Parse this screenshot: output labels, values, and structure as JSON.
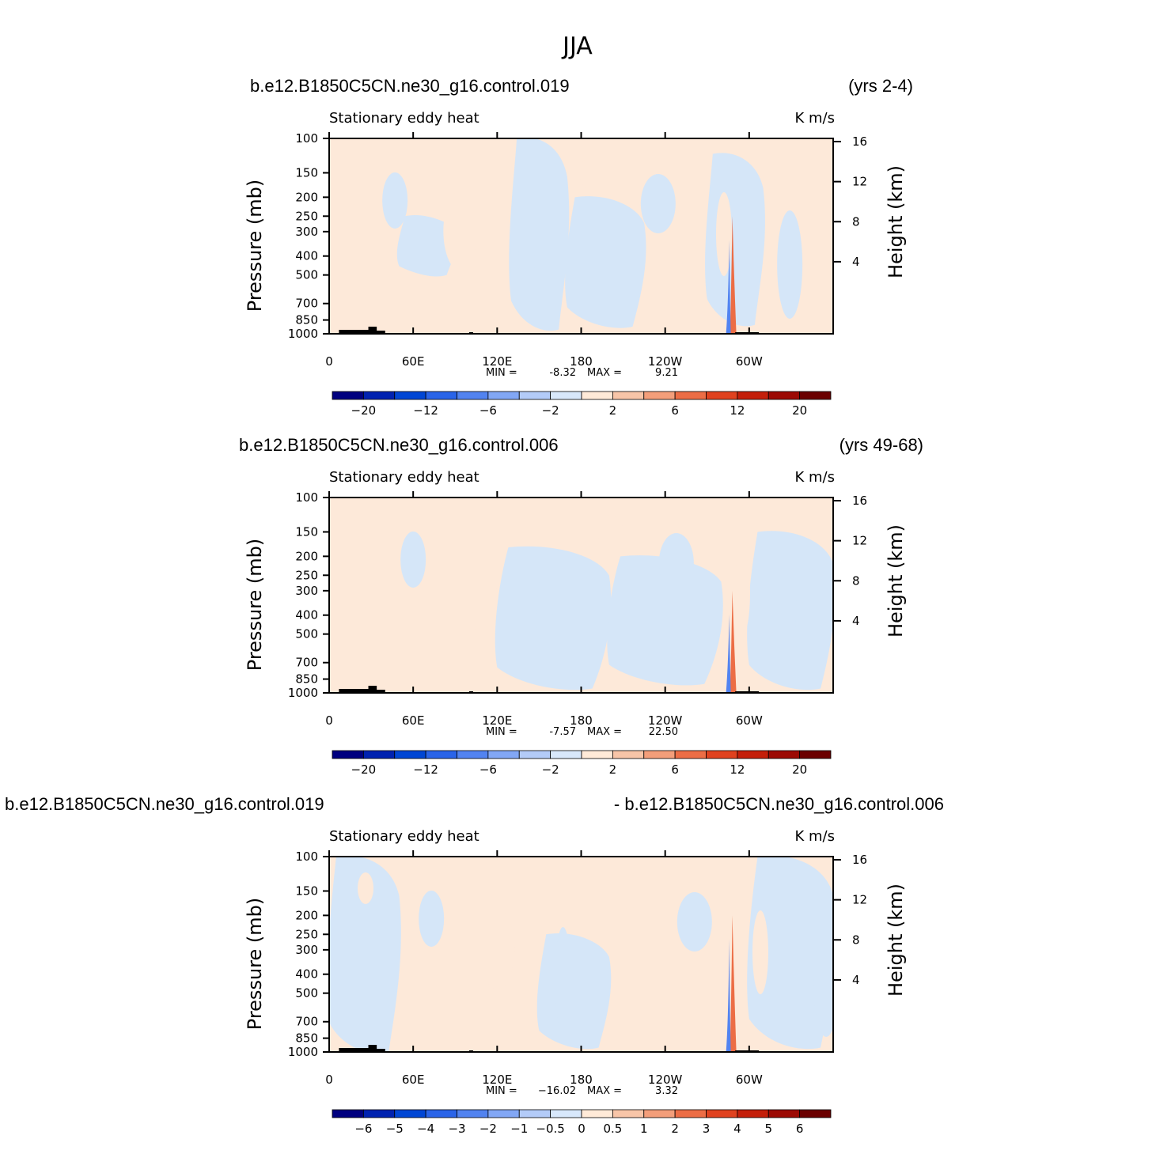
{
  "figure_title": "JJA",
  "colors": {
    "cb": [
      "#00007f",
      "#0022b0",
      "#0046d4",
      "#2a64e8",
      "#5283f0",
      "#82a7f5",
      "#b3cbf8",
      "#d8e8fb",
      "#ffead8",
      "#f8c5a8",
      "#f39e7a",
      "#ec6d45",
      "#e0421f",
      "#c41f0a",
      "#9c0a04",
      "#6b0000"
    ],
    "wind_blue": "#d5e6f8",
    "wind_peach": "#fde9d9",
    "terrain": "#000000"
  },
  "chart_data": [
    {
      "type": "heatmap",
      "case_left": "b.e12.B1850C5CN.ne30_g16.control.019",
      "case_right": "(yrs 2-4)",
      "subtitle_left": "Stationary eddy heat",
      "subtitle_right": "K m/s",
      "ylabel": "Pressure (mb)",
      "ylabel_right": "Height (km)",
      "xticks": [
        "0",
        "60E",
        "120E",
        "180",
        "120W",
        "60W"
      ],
      "xtick_values": [
        0,
        60,
        120,
        180,
        240,
        300
      ],
      "xlim": [
        0,
        360
      ],
      "yticks": [
        "100",
        "150",
        "200",
        "250",
        "300",
        "400",
        "500",
        "700",
        "850",
        "1000"
      ],
      "ytick_values": [
        100,
        150,
        200,
        250,
        300,
        400,
        500,
        700,
        850,
        1000
      ],
      "ylim": [
        1000,
        100
      ],
      "yticks_right": [
        "16",
        "12",
        "8",
        "4"
      ],
      "ytick_right_values": [
        16,
        12,
        8,
        4
      ],
      "min_label": "MIN =",
      "min_value": "-8.32",
      "max_label": "MAX =",
      "max_value": "9.21",
      "colorbar_labels": [
        "−20",
        "−12",
        "−6",
        "−2",
        "2",
        "6",
        "12",
        "20"
      ],
      "colorbar_levels": [
        -20,
        -16,
        -12,
        -8,
        -6,
        -4,
        -2,
        -1,
        1,
        2,
        4,
        6,
        8,
        12,
        16,
        20
      ],
      "blue_regions": [
        {
          "lon": [
            130,
            170
          ],
          "p": [
            100,
            950
          ]
        },
        {
          "lon": [
            170,
            225
          ],
          "p": [
            200,
            920
          ]
        },
        {
          "lon": [
            50,
            90
          ],
          "p": [
            250,
            500
          ]
        },
        {
          "lon": [
            270,
            310
          ],
          "p": [
            120,
            900
          ]
        }
      ],
      "red_spikes": [
        {
          "lon": 288,
          "p": [
            250,
            1000
          ],
          "value": 9.21
        }
      ]
    },
    {
      "type": "heatmap",
      "case_left": "b.e12.B1850C5CN.ne30_g16.control.006",
      "case_right": "(yrs 49-68)",
      "subtitle_left": "Stationary eddy heat",
      "subtitle_right": "K m/s",
      "ylabel": "Pressure (mb)",
      "ylabel_right": "Height (km)",
      "xticks": [
        "0",
        "60E",
        "120E",
        "180",
        "120W",
        "60W"
      ],
      "xtick_values": [
        0,
        60,
        120,
        180,
        240,
        300
      ],
      "xlim": [
        0,
        360
      ],
      "yticks": [
        "100",
        "150",
        "200",
        "250",
        "300",
        "400",
        "500",
        "700",
        "850",
        "1000"
      ],
      "ytick_values": [
        100,
        150,
        200,
        250,
        300,
        400,
        500,
        700,
        850,
        1000
      ],
      "ylim": [
        1000,
        100
      ],
      "yticks_right": [
        "16",
        "12",
        "8",
        "4"
      ],
      "ytick_right_values": [
        16,
        12,
        8,
        4
      ],
      "min_label": "MIN =",
      "min_value": "-7.57",
      "max_label": "MAX =",
      "max_value": "22.50",
      "colorbar_labels": [
        "−20",
        "−12",
        "−6",
        "−2",
        "2",
        "6",
        "12",
        "20"
      ],
      "colorbar_levels": [
        -20,
        -16,
        -12,
        -8,
        -6,
        -4,
        -2,
        -1,
        1,
        2,
        4,
        6,
        8,
        12,
        16,
        20
      ],
      "blue_regions": [
        {
          "lon": [
            120,
            200
          ],
          "p": [
            180,
            950
          ]
        },
        {
          "lon": [
            200,
            280
          ],
          "p": [
            200,
            900
          ]
        },
        {
          "lon": [
            300,
            360
          ],
          "p": [
            150,
            950
          ]
        }
      ],
      "red_spikes": [
        {
          "lon": 288,
          "p": [
            300,
            1000
          ],
          "value": 22.5
        }
      ]
    },
    {
      "type": "heatmap",
      "case_left": "b.e12.B1850C5CN.ne30_g16.control.019",
      "case_right": "- b.e12.B1850C5CN.ne30_g16.control.006",
      "subtitle_left": "Stationary eddy heat",
      "subtitle_right": "K m/s",
      "ylabel": "Pressure (mb)",
      "ylabel_right": "Height (km)",
      "xticks": [
        "0",
        "60E",
        "120E",
        "180",
        "120W",
        "60W"
      ],
      "xtick_values": [
        0,
        60,
        120,
        180,
        240,
        300
      ],
      "xlim": [
        0,
        360
      ],
      "yticks": [
        "100",
        "150",
        "200",
        "250",
        "300",
        "400",
        "500",
        "700",
        "850",
        "1000"
      ],
      "ytick_values": [
        100,
        150,
        200,
        250,
        300,
        400,
        500,
        700,
        850,
        1000
      ],
      "ylim": [
        1000,
        100
      ],
      "yticks_right": [
        "16",
        "12",
        "8",
        "4"
      ],
      "ytick_right_values": [
        16,
        12,
        8,
        4
      ],
      "min_label": "MIN =",
      "min_value": "−16.02",
      "max_label": "MAX =",
      "max_value": "3.32",
      "colorbar_labels": [
        "−6",
        "−5",
        "−4",
        "−3",
        "−2",
        "−1",
        "−0.5",
        "0",
        "0.5",
        "1",
        "2",
        "3",
        "4",
        "5",
        "6"
      ],
      "colorbar_levels": [
        -6,
        -5,
        -4,
        -3,
        -2,
        -1,
        -0.5,
        0,
        0.5,
        1,
        2,
        3,
        4,
        5,
        6
      ],
      "blue_regions": [
        {
          "lon": [
            0,
            50
          ],
          "p": [
            100,
            1000
          ]
        },
        {
          "lon": [
            150,
            200
          ],
          "p": [
            250,
            950
          ]
        },
        {
          "lon": [
            300,
            360
          ],
          "p": [
            100,
            950
          ]
        }
      ],
      "red_spikes": [
        {
          "lon": 288,
          "p": [
            200,
            1000
          ],
          "value": 3.32
        }
      ]
    }
  ]
}
